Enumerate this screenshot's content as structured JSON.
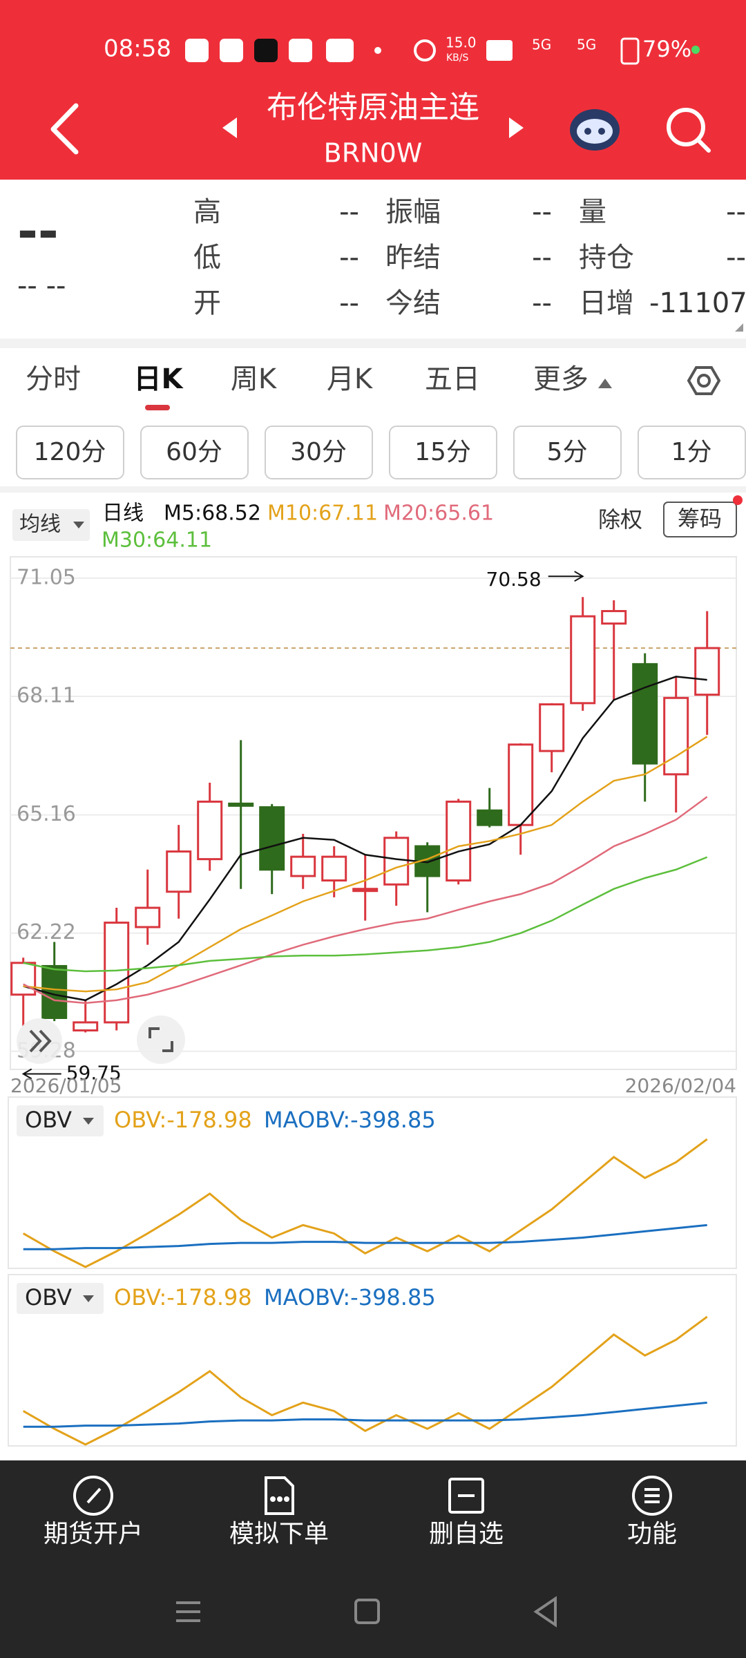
{
  "status_bar": {
    "time": "08:58",
    "speed": "15.0",
    "speed_unit": "KB/S",
    "network": "5G",
    "battery": "79%"
  },
  "header": {
    "title": "布伦特原油主连",
    "subtitle": "BRN0W"
  },
  "quote": {
    "price": "--",
    "change": "-- --",
    "fields": [
      {
        "label": "高",
        "value": "--"
      },
      {
        "label": "振幅",
        "value": "--"
      },
      {
        "label": "量",
        "value": "--"
      },
      {
        "label": "低",
        "value": "--"
      },
      {
        "label": "昨结",
        "value": "--"
      },
      {
        "label": "持仓",
        "value": "--"
      },
      {
        "label": "开",
        "value": "--"
      },
      {
        "label": "今结",
        "value": "--"
      },
      {
        "label": "日增",
        "value": "-11107"
      }
    ]
  },
  "tabs": [
    "分时",
    "日K",
    "周K",
    "月K",
    "五日",
    "更多"
  ],
  "intervals": [
    "120分",
    "60分",
    "30分",
    "15分",
    "5分",
    "1分"
  ],
  "chart_data": {
    "type": "candlestick",
    "ma_button": "均线",
    "period_label": "日线",
    "adjust_button": "除权",
    "chips_button": "筹码",
    "ylim": [
      58.83,
      71.58
    ],
    "yticks": [
      71.05,
      68.11,
      65.16,
      62.22,
      59.28
    ],
    "categories": [
      "2026/01/05",
      null,
      null,
      null,
      null,
      null,
      null,
      null,
      null,
      null,
      null,
      null,
      null,
      null,
      null,
      null,
      null,
      null,
      null,
      null,
      null,
      null,
      "2026/02/04"
    ],
    "open": [
      60.69,
      61.4,
      59.8,
      60.0,
      62.37,
      63.25,
      64.06,
      65.44,
      65.35,
      63.64,
      63.53,
      63.27,
      63.43,
      64.38,
      63.53,
      65.27,
      64.91,
      66.75,
      67.94,
      69.92,
      68.91,
      66.17,
      68.15
    ],
    "close": [
      61.48,
      60.11,
      60.0,
      62.48,
      62.85,
      64.25,
      65.49,
      65.4,
      63.8,
      64.12,
      64.12,
      63.32,
      64.59,
      63.64,
      65.49,
      64.91,
      66.91,
      67.91,
      70.1,
      70.23,
      66.44,
      68.07,
      69.31
    ],
    "high": [
      61.61,
      62.0,
      60.55,
      62.85,
      63.8,
      64.91,
      65.96,
      67.02,
      65.43,
      64.69,
      64.38,
      64.17,
      64.75,
      64.48,
      65.56,
      65.83,
      66.94,
      67.94,
      70.58,
      70.5,
      69.18,
      68.6,
      70.23
    ],
    "low": [
      59.9,
      60.03,
      59.75,
      59.8,
      61.93,
      62.58,
      63.77,
      63.32,
      63.19,
      63.32,
      63.11,
      62.53,
      62.9,
      62.74,
      63.43,
      64.85,
      64.17,
      66.22,
      67.75,
      68.02,
      65.49,
      65.22,
      67.15
    ],
    "up_color": "#d9363e",
    "down_color": "#2f6b1c",
    "high_label": 70.58,
    "low_label": 59.75,
    "ma_series": [
      {
        "label": "M5:68.52",
        "color": "#111111",
        "values": [
          60.9,
          60.69,
          60.55,
          60.95,
          61.42,
          62.0,
          63.06,
          64.17,
          64.38,
          64.59,
          64.54,
          64.17,
          64.06,
          63.98,
          64.25,
          64.43,
          64.91,
          65.75,
          67.07,
          68.02,
          68.33,
          68.6,
          68.52
        ]
      },
      {
        "label": "M10:67.11",
        "color": "#e3a21a",
        "values": [
          60.9,
          60.82,
          60.77,
          60.82,
          61.0,
          61.42,
          61.87,
          62.32,
          62.66,
          63.01,
          63.27,
          63.53,
          63.85,
          64.06,
          64.38,
          64.51,
          64.69,
          64.91,
          65.49,
          66.01,
          66.17,
          66.62,
          67.11
        ]
      },
      {
        "label": "M20:65.61",
        "color": "#e06a7a",
        "values": [
          60.95,
          60.55,
          60.48,
          60.55,
          60.69,
          60.9,
          61.16,
          61.42,
          61.69,
          61.93,
          62.14,
          62.32,
          62.48,
          62.58,
          62.8,
          63.01,
          63.19,
          63.46,
          63.9,
          64.38,
          64.69,
          65.04,
          65.61
        ]
      },
      {
        "label": "M30:64.11",
        "color": "#5cbf3c",
        "values": [
          61.48,
          61.32,
          61.27,
          61.29,
          61.35,
          61.42,
          61.53,
          61.58,
          61.64,
          61.66,
          61.66,
          61.69,
          61.74,
          61.79,
          61.87,
          62.0,
          62.22,
          62.53,
          62.93,
          63.32,
          63.59,
          63.8,
          64.11
        ]
      }
    ],
    "indicator_panels": [
      {
        "selector": "OBV",
        "series_labels": [
          "OBV:-178.98",
          "MAOBV:-398.85"
        ]
      },
      {
        "selector": "OBV",
        "series_labels": [
          "OBV:-178.98",
          "MAOBV:-398.85"
        ]
      }
    ],
    "obv_series": [
      {
        "color": "#e3a21a",
        "values": [
          -420.2,
          -465.8,
          -506.0,
          -465.8,
          -420.2,
          -372.0,
          -318.4,
          -385.4,
          -430.9,
          -398.8,
          -420.2,
          -471.1,
          -430.9,
          -465.8,
          -425.6,
          -465.8,
          -412.2,
          -358.6,
          -291.6,
          -224.6,
          -278.2,
          -238.0,
          -178.98
        ]
      },
      {
        "color": "#1a6fc0",
        "values": [
          -460.4,
          -460.4,
          -457.7,
          -457.7,
          -455.0,
          -452.3,
          -447.0,
          -444.3,
          -444.3,
          -441.6,
          -441.6,
          -444.3,
          -444.3,
          -444.3,
          -444.3,
          -444.3,
          -441.6,
          -436.3,
          -430.9,
          -422.9,
          -414.8,
          -406.8,
          -398.85
        ]
      }
    ]
  },
  "bottom_nav": [
    "期货开户",
    "模拟下单",
    "删自选",
    "功能"
  ]
}
